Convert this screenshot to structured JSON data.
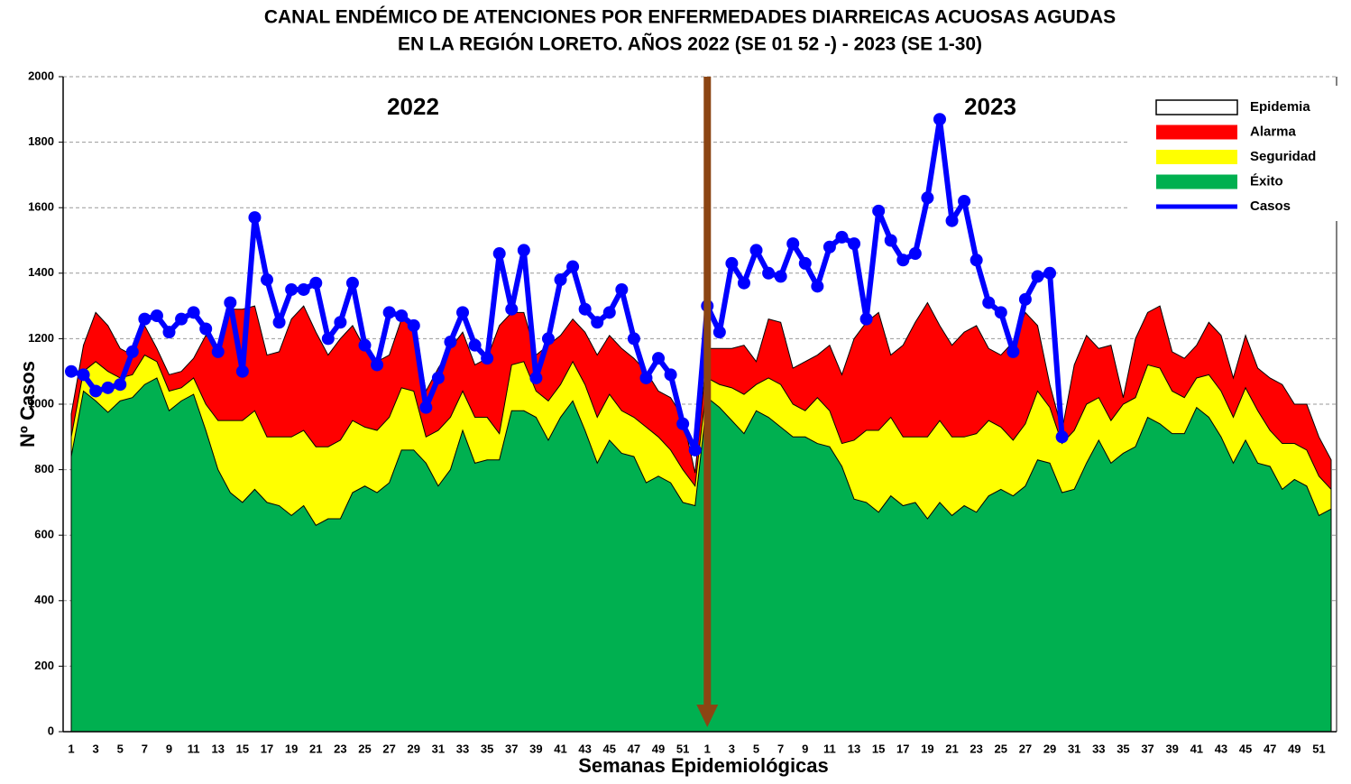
{
  "chart_data": {
    "type": "area",
    "title": "CANAL ENDÉMICO DE ATENCIONES POR ENFERMEDADES DIARREICAS ACUOSAS AGUDAS",
    "subtitle": "EN LA REGIÓN LORETO.  AÑOS 2022 (SE 01 52 -) - 2023 (SE 1-30)",
    "annotations": [
      "2022",
      "2023"
    ],
    "x_label": "Semanas Epidemiológicas",
    "y_label": "Nº Casos",
    "ylim": [
      0,
      2000
    ],
    "yticks": [
      0,
      200,
      400,
      600,
      800,
      1000,
      1200,
      1400,
      1600,
      1800,
      2000
    ],
    "grid": true,
    "legend": "top-right",
    "categories": [
      1,
      null,
      3,
      null,
      5,
      null,
      7,
      null,
      9,
      null,
      11,
      null,
      13,
      null,
      15,
      null,
      17,
      null,
      19,
      null,
      21,
      null,
      23,
      null,
      25,
      null,
      27,
      null,
      29,
      null,
      31,
      null,
      33,
      null,
      35,
      null,
      37,
      null,
      39,
      null,
      41,
      null,
      43,
      null,
      45,
      null,
      47,
      null,
      49,
      null,
      51,
      null,
      1,
      null,
      3,
      null,
      5,
      null,
      7,
      null,
      9,
      null,
      11,
      null,
      13,
      null,
      15,
      null,
      17,
      null,
      19,
      null,
      21,
      null,
      23,
      null,
      25,
      null,
      27,
      null,
      29,
      null,
      31,
      null,
      33,
      null,
      35,
      null,
      37,
      null,
      39,
      null,
      41,
      null,
      43,
      null,
      45,
      null,
      47,
      null,
      49,
      null,
      51,
      null
    ],
    "series": [
      {
        "name": "Epidemia",
        "color": "#ffffff"
      },
      {
        "name": "Alarma",
        "color": "#ff0000",
        "values": [
          970,
          1180,
          1280,
          1240,
          1170,
          1150,
          1240,
          1170,
          1090,
          1100,
          1140,
          1210,
          1180,
          1290,
          1290,
          1300,
          1150,
          1160,
          1260,
          1300,
          1220,
          1150,
          1200,
          1240,
          1170,
          1130,
          1150,
          1260,
          1250,
          1040,
          1110,
          1170,
          1220,
          1120,
          1140,
          1240,
          1280,
          1280,
          1150,
          1180,
          1210,
          1260,
          1220,
          1150,
          1210,
          1170,
          1140,
          1100,
          1040,
          1020,
          960,
          790,
          1170,
          1170,
          1170,
          1180,
          1130,
          1260,
          1250,
          1110,
          1130,
          1150,
          1180,
          1090,
          1200,
          1250,
          1280,
          1150,
          1180,
          1250,
          1310,
          1240,
          1180,
          1220,
          1240,
          1170,
          1150,
          1190,
          1280,
          1240,
          1060,
          920,
          1120,
          1210,
          1170,
          1180,
          1020,
          1200,
          1280,
          1300,
          1160,
          1140,
          1180,
          1250,
          1210,
          1080,
          1210,
          1110,
          1080,
          1060,
          1000,
          1000,
          900,
          830
        ]
      },
      {
        "name": "Seguridad",
        "color": "#ffff00",
        "values": [
          900,
          1100,
          1130,
          1100,
          1080,
          1090,
          1150,
          1130,
          1040,
          1050,
          1080,
          1000,
          950,
          950,
          950,
          980,
          900,
          900,
          900,
          920,
          870,
          870,
          890,
          950,
          930,
          920,
          960,
          1050,
          1040,
          900,
          920,
          960,
          1040,
          960,
          960,
          910,
          1120,
          1130,
          1040,
          1010,
          1060,
          1130,
          1060,
          960,
          1030,
          980,
          960,
          930,
          900,
          860,
          800,
          750,
          1080,
          1060,
          1050,
          1030,
          1060,
          1080,
          1060,
          1000,
          980,
          1020,
          980,
          880,
          890,
          920,
          920,
          960,
          900,
          900,
          900,
          950,
          900,
          900,
          910,
          950,
          930,
          890,
          940,
          1040,
          990,
          880,
          920,
          1000,
          1020,
          950,
          1000,
          1020,
          1120,
          1110,
          1040,
          1020,
          1080,
          1090,
          1040,
          960,
          1050,
          980,
          920,
          880,
          880,
          860,
          780,
          740
        ]
      },
      {
        "name": "Éxito",
        "color": "#00b050",
        "values": [
          840,
          1040,
          1010,
          975,
          1010,
          1020,
          1060,
          1080,
          980,
          1010,
          1030,
          920,
          800,
          730,
          700,
          740,
          700,
          690,
          660,
          690,
          630,
          650,
          650,
          730,
          750,
          730,
          760,
          860,
          860,
          820,
          750,
          800,
          920,
          820,
          830,
          830,
          980,
          980,
          960,
          890,
          960,
          1010,
          920,
          820,
          890,
          850,
          840,
          760,
          780,
          760,
          700,
          690,
          1020,
          990,
          950,
          910,
          980,
          960,
          930,
          900,
          900,
          880,
          870,
          810,
          710,
          700,
          670,
          720,
          690,
          700,
          650,
          700,
          660,
          690,
          670,
          720,
          740,
          720,
          750,
          830,
          820,
          730,
          740,
          820,
          890,
          820,
          850,
          870,
          960,
          940,
          910,
          910,
          990,
          960,
          900,
          820,
          890,
          820,
          810,
          740,
          770,
          750,
          660,
          680
        ]
      },
      {
        "name": "Casos",
        "color": "#0000ff",
        "type": "line",
        "values": [
          1100,
          1090,
          1040,
          1050,
          1060,
          1160,
          1260,
          1270,
          1220,
          1260,
          1280,
          1230,
          1160,
          1310,
          1100,
          1570,
          1380,
          1250,
          1350,
          1350,
          1370,
          1200,
          1250,
          1370,
          1180,
          1120,
          1280,
          1270,
          1240,
          990,
          1080,
          1190,
          1280,
          1180,
          1140,
          1460,
          1290,
          1470,
          1080,
          1200,
          1380,
          1420,
          1290,
          1250,
          1280,
          1350,
          1200,
          1080,
          1140,
          1090,
          940,
          860,
          1300,
          1220,
          1430,
          1370,
          1470,
          1400,
          1390,
          1490,
          1430,
          1360,
          1480,
          1510,
          1490,
          1260,
          1590,
          1500,
          1440,
          1460,
          1630,
          1870,
          1560,
          1620,
          1440,
          1310,
          1280,
          1160,
          1320,
          1390,
          1400,
          900,
          null,
          null,
          null,
          null,
          null,
          null,
          null,
          null,
          null,
          null,
          null,
          null,
          null,
          null,
          null,
          null,
          null,
          null,
          null,
          null,
          null,
          null
        ]
      }
    ]
  }
}
